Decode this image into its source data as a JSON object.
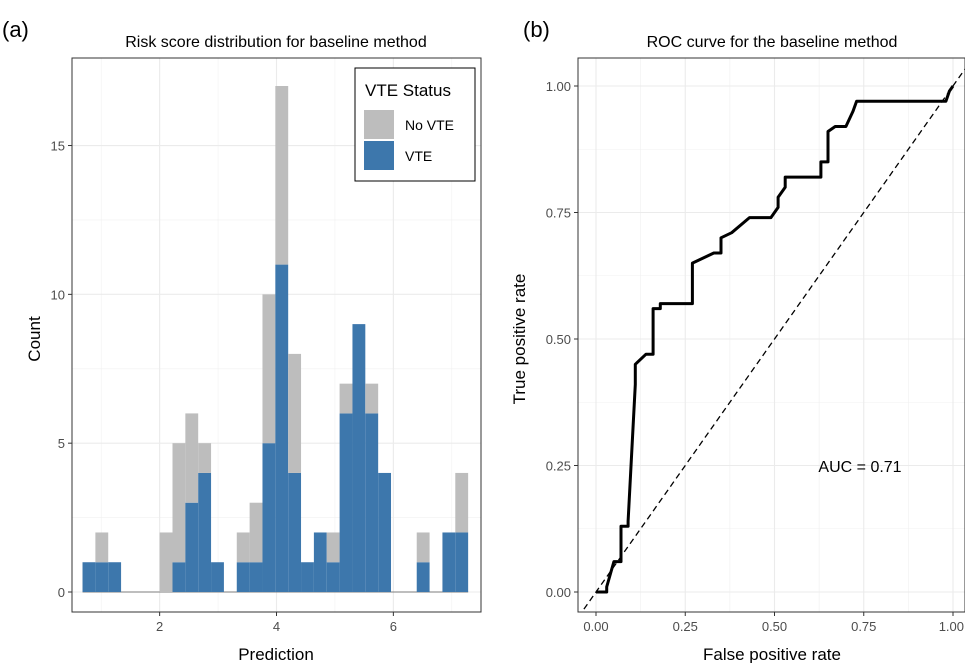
{
  "panels": {
    "a": {
      "tag": "(a)"
    },
    "b": {
      "tag": "(b)"
    }
  },
  "chart_data": [
    {
      "type": "bar",
      "subtype": "stacked-histogram",
      "title": "Risk score distribution for baseline method",
      "xlabel": "Prediction",
      "ylabel": "Count",
      "xlim": [
        0.5,
        7.5
      ],
      "ylim": [
        0,
        17
      ],
      "xticks": [
        "2",
        "4",
        "6"
      ],
      "yticks": [
        "0",
        "5",
        "10",
        "15"
      ],
      "grid": true,
      "legend": {
        "title": "VTE Status",
        "placement": "top-right"
      },
      "bin_width": 0.22,
      "x": [
        0.79,
        1.01,
        1.23,
        1.45,
        1.67,
        1.89,
        2.11,
        2.33,
        2.55,
        2.77,
        2.99,
        3.21,
        3.43,
        3.65,
        3.87,
        4.09,
        4.31,
        4.53,
        4.75,
        4.97,
        5.19,
        5.41,
        5.63,
        5.85,
        6.07,
        6.29,
        6.51,
        6.73,
        6.95,
        7.17
      ],
      "series": [
        {
          "name": "VTE",
          "color": "#3d77ac",
          "values": [
            1,
            1,
            1,
            0,
            0,
            0,
            0,
            1,
            3,
            4,
            1,
            0,
            1,
            1,
            5,
            11,
            4,
            1,
            2,
            1,
            6,
            9,
            6,
            4,
            0,
            0,
            1,
            0,
            2,
            2
          ]
        },
        {
          "name": "No VTE",
          "color": "#bdbdbd",
          "values": [
            0,
            1,
            0,
            0,
            0,
            0,
            2,
            4,
            3,
            1,
            0,
            0,
            1,
            2,
            5,
            6,
            4,
            0,
            0,
            1,
            1,
            0,
            1,
            0,
            0,
            0,
            1,
            0,
            0,
            2
          ]
        }
      ]
    },
    {
      "type": "line",
      "title": "ROC curve for the baseline method",
      "xlabel": "False positive rate",
      "ylabel": "True positive rate",
      "xlim": [
        0,
        1
      ],
      "ylim": [
        0,
        1
      ],
      "xticks": [
        "0.00",
        "0.25",
        "0.50",
        "0.75",
        "1.00"
      ],
      "yticks": [
        "0.00",
        "0.25",
        "0.50",
        "0.75",
        "1.00"
      ],
      "grid": true,
      "annotation": "AUC = 0.71",
      "series": [
        {
          "style": "solid",
          "color": "#000000",
          "x": [
            0.0,
            0.03,
            0.03,
            0.05,
            0.07,
            0.07,
            0.09,
            0.09,
            0.11,
            0.11,
            0.14,
            0.16,
            0.16,
            0.18,
            0.18,
            0.2,
            0.22,
            0.27,
            0.27,
            0.33,
            0.35,
            0.35,
            0.38,
            0.43,
            0.46,
            0.49,
            0.51,
            0.51,
            0.53,
            0.53,
            0.57,
            0.59,
            0.63,
            0.63,
            0.65,
            0.65,
            0.67,
            0.7,
            0.72,
            0.73,
            0.98,
            0.99,
            1.0
          ],
          "y": [
            0.0,
            0.0,
            0.01,
            0.06,
            0.06,
            0.13,
            0.13,
            0.14,
            0.41,
            0.45,
            0.47,
            0.47,
            0.56,
            0.56,
            0.57,
            0.57,
            0.57,
            0.57,
            0.65,
            0.67,
            0.67,
            0.7,
            0.71,
            0.74,
            0.74,
            0.74,
            0.76,
            0.78,
            0.8,
            0.82,
            0.82,
            0.82,
            0.82,
            0.85,
            0.85,
            0.91,
            0.92,
            0.92,
            0.95,
            0.97,
            0.97,
            0.99,
            1.0
          ]
        },
        {
          "style": "dashed",
          "color": "#000000",
          "x": [
            -0.05,
            1.05
          ],
          "y": [
            -0.05,
            1.05
          ]
        }
      ]
    }
  ]
}
